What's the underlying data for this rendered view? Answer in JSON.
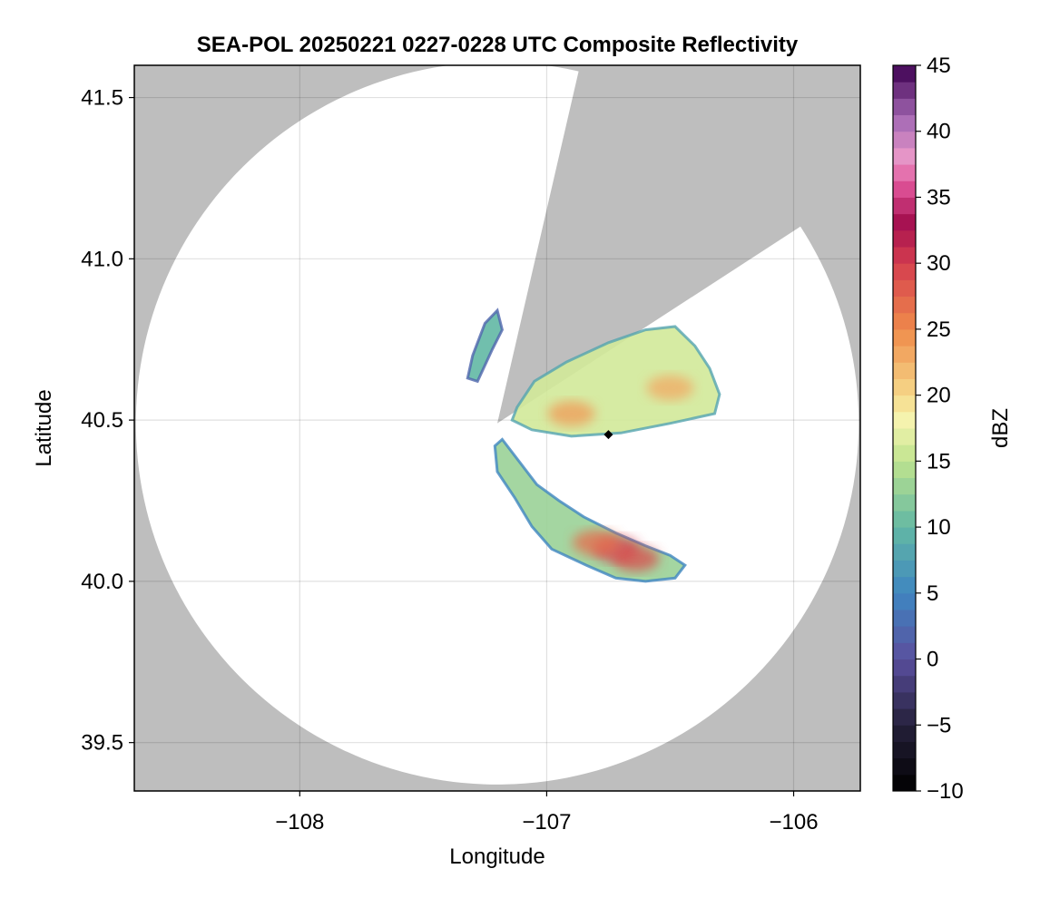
{
  "chart_data": {
    "type": "heatmap",
    "title": "SEA-POL 20250221 0227-0228 UTC Composite Reflectivity",
    "xlabel": "Longitude",
    "ylabel": "Latitude",
    "xlim": [
      -108.67,
      -105.73
    ],
    "ylim": [
      39.35,
      41.6
    ],
    "x_ticks": [
      -108,
      -107,
      -106
    ],
    "y_ticks": [
      39.5,
      40.0,
      40.5,
      41.0,
      41.5
    ],
    "grid": true,
    "radar": {
      "center": {
        "lon": -107.2,
        "lat": 40.49
      },
      "range_radius_deg_lat": 1.12,
      "blocked_sectors_deg_from_north": [
        [
          13,
          57
        ]
      ]
    },
    "colorbar": {
      "label": "dBZ",
      "range": [
        -10,
        45
      ],
      "ticks": [
        -10,
        -5,
        0,
        5,
        10,
        15,
        20,
        25,
        30,
        35,
        40,
        45
      ],
      "colormap": "spectral-like",
      "stops": [
        {
          "value": -10,
          "color": "#000000"
        },
        {
          "value": -5,
          "color": "#25203a"
        },
        {
          "value": 0,
          "color": "#5a4f9e"
        },
        {
          "value": 5,
          "color": "#3f86c1"
        },
        {
          "value": 10,
          "color": "#62b8a4"
        },
        {
          "value": 15,
          "color": "#bfe38e"
        },
        {
          "value": 18,
          "color": "#f5f5b0"
        },
        {
          "value": 20,
          "color": "#f6d98a"
        },
        {
          "value": 25,
          "color": "#ef8b4a"
        },
        {
          "value": 30,
          "color": "#d53e4f"
        },
        {
          "value": 33,
          "color": "#a50f4f"
        },
        {
          "value": 36,
          "color": "#e0559a"
        },
        {
          "value": 38,
          "color": "#e897c8"
        },
        {
          "value": 41,
          "color": "#a569b4"
        },
        {
          "value": 45,
          "color": "#3d0050"
        }
      ]
    },
    "echo_regions": [
      {
        "name": "northeast band",
        "points": [
          [
            -107.12,
            40.54
          ],
          [
            -107.05,
            40.62
          ],
          [
            -106.92,
            40.68
          ],
          [
            -106.75,
            40.74
          ],
          [
            -106.6,
            40.78
          ],
          [
            -106.48,
            40.79
          ],
          [
            -106.4,
            40.73
          ],
          [
            -106.34,
            40.66
          ],
          [
            -106.3,
            40.58
          ],
          [
            -106.32,
            40.52
          ],
          [
            -106.5,
            40.49
          ],
          [
            -106.7,
            40.46
          ],
          [
            -106.9,
            40.45
          ],
          [
            -107.06,
            40.47
          ],
          [
            -107.14,
            40.5
          ]
        ],
        "dbz": 16
      },
      {
        "name": "southeast band",
        "points": [
          [
            -107.18,
            40.44
          ],
          [
            -107.12,
            40.38
          ],
          [
            -107.04,
            40.3
          ],
          [
            -106.95,
            40.25
          ],
          [
            -106.85,
            40.2
          ],
          [
            -106.72,
            40.15
          ],
          [
            -106.6,
            40.11
          ],
          [
            -106.5,
            40.08
          ],
          [
            -106.44,
            40.05
          ],
          [
            -106.48,
            40.01
          ],
          [
            -106.6,
            40.0
          ],
          [
            -106.72,
            40.01
          ],
          [
            -106.84,
            40.05
          ],
          [
            -106.98,
            40.1
          ],
          [
            -107.06,
            40.17
          ],
          [
            -107.13,
            40.26
          ],
          [
            -107.2,
            40.34
          ],
          [
            -107.21,
            40.42
          ]
        ],
        "dbz": 13
      },
      {
        "name": "north scatter",
        "points": [
          [
            -107.28,
            40.62
          ],
          [
            -107.22,
            40.72
          ],
          [
            -107.18,
            40.78
          ],
          [
            -107.2,
            40.84
          ],
          [
            -107.25,
            40.8
          ],
          [
            -107.3,
            40.7
          ],
          [
            -107.32,
            40.63
          ]
        ],
        "dbz": 10
      }
    ],
    "echo_cores": [
      {
        "lon": -106.72,
        "lat": 40.1,
        "dbz": 30
      },
      {
        "lon": -106.64,
        "lat": 40.07,
        "dbz": 29
      },
      {
        "lon": -106.8,
        "lat": 40.12,
        "dbz": 27
      },
      {
        "lon": -106.5,
        "lat": 40.6,
        "dbz": 23
      },
      {
        "lon": -106.9,
        "lat": 40.52,
        "dbz": 24
      }
    ],
    "markers": [
      {
        "name": "site-marker",
        "lon": -106.75,
        "lat": 40.455,
        "color": "#000000"
      }
    ]
  }
}
